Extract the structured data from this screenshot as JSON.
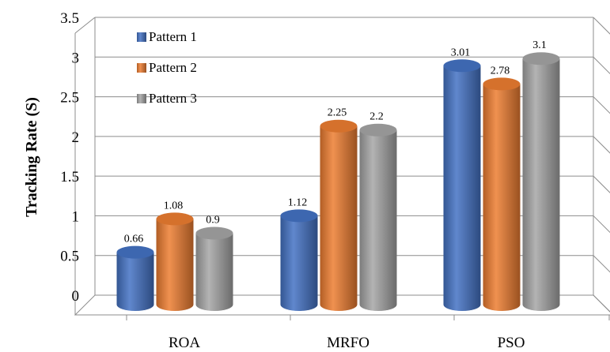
{
  "chart_data": {
    "type": "bar",
    "title": "",
    "xlabel": "",
    "ylabel": "Tracking Rate (S)",
    "categories": [
      "ROA",
      "MRFO",
      "PSO"
    ],
    "series": [
      {
        "name": "Pattern 1",
        "values": [
          0.66,
          1.12,
          3.01
        ],
        "color": "#4472C4"
      },
      {
        "name": "Pattern 2",
        "values": [
          1.08,
          2.25,
          2.78
        ],
        "color": "#ED7D31"
      },
      {
        "name": "Pattern 3",
        "values": [
          0.9,
          2.2,
          3.1
        ],
        "color": "#A5A5A5"
      }
    ],
    "data_labels": [
      [
        "0.66",
        "1.12",
        "3.01"
      ],
      [
        "1.08",
        "2.25",
        "2.78"
      ],
      [
        "0.9",
        "2.2",
        "3.1"
      ]
    ],
    "yticks": [
      "0",
      "0.5",
      "1",
      "1.5",
      "2",
      "2.5",
      "3",
      "3.5"
    ],
    "ylim": [
      0,
      3.5
    ],
    "grid": true,
    "legend_position": "top-left",
    "style": "3d-cylinder"
  }
}
